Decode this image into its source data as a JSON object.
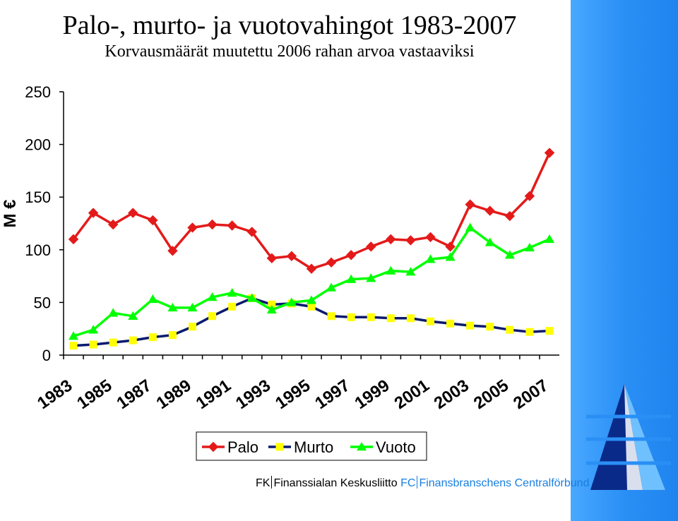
{
  "chart_data": {
    "type": "line",
    "title": "Palo-, murto- ja vuotovahingot 1983-2007",
    "subtitle": "Korvausmäärät muutettu 2006 rahan arvoa vastaaviksi",
    "xlabel": "",
    "ylabel": "M €",
    "ylim": [
      0,
      250
    ],
    "yticks": [
      "0",
      "50",
      "100",
      "150",
      "200",
      "250"
    ],
    "xtick_labels": [
      "1983",
      "1985",
      "1987",
      "1989",
      "1991",
      "1993",
      "1995",
      "1997",
      "1999",
      "2001",
      "2003",
      "2005",
      "2007"
    ],
    "x": [
      1983,
      1984,
      1985,
      1986,
      1987,
      1988,
      1989,
      1990,
      1991,
      1992,
      1993,
      1994,
      1995,
      1996,
      1997,
      1998,
      1999,
      2000,
      2001,
      2002,
      2003,
      2004,
      2005,
      2006,
      2007
    ],
    "grid": false,
    "legend": "bottom-center",
    "series": [
      {
        "name": "Palo",
        "color": "#e41a1a",
        "marker": "diamond",
        "values": [
          110,
          135,
          124,
          135,
          128,
          99,
          121,
          124,
          123,
          117,
          92,
          94,
          82,
          88,
          95,
          103,
          110,
          109,
          112,
          103,
          143,
          137,
          132,
          151,
          192
        ]
      },
      {
        "name": "Murto",
        "color": "#0b1a6e",
        "marker_color": "#ffff00",
        "marker": "square",
        "values": [
          9,
          10,
          12,
          14,
          17,
          19,
          27,
          37,
          46,
          54,
          48,
          49,
          46,
          37,
          36,
          36,
          35,
          35,
          32,
          30,
          28,
          27,
          24,
          22,
          23
        ]
      },
      {
        "name": "Vuoto",
        "color": "#00ff00",
        "marker": "triangle",
        "values": [
          18,
          24,
          40,
          37,
          53,
          45,
          45,
          55,
          59,
          54,
          43,
          50,
          52,
          64,
          72,
          73,
          80,
          79,
          91,
          93,
          121,
          107,
          95,
          102,
          110
        ]
      }
    ]
  },
  "branding": {
    "fk": "FK",
    "fk_name": "Finanssialan Keskusliitto",
    "fc": "FC",
    "fc_name": "Finansbranschens Centralförbund"
  },
  "logo": "pyramid-logo"
}
